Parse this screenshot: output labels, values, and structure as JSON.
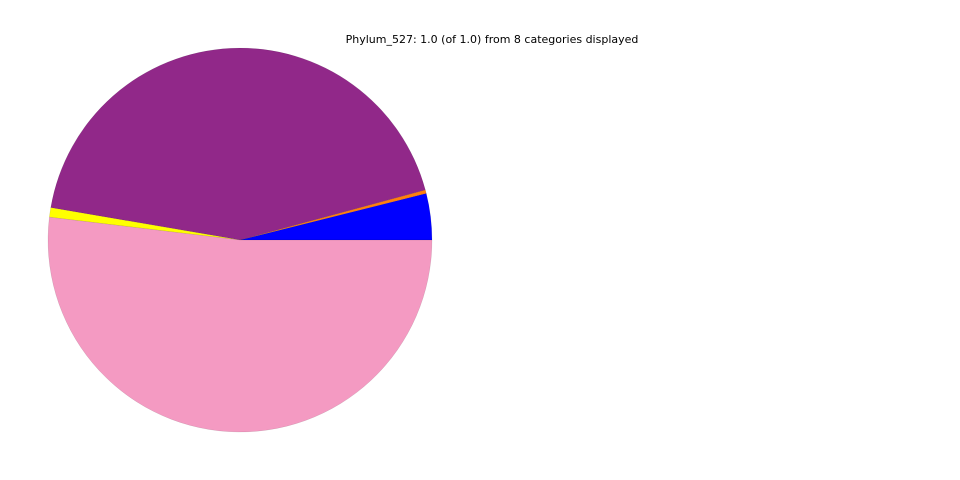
{
  "chart_data": {
    "type": "pie",
    "title": "Phylum_527: 1.0 (of 1.0) from 8 categories displayed",
    "start_angle": 0,
    "direction": "counterclockwise",
    "slices": [
      {
        "value": 0.039,
        "color": "#0000ff"
      },
      {
        "value": 0.003,
        "color": "#ff7f0e"
      },
      {
        "value": 0.431,
        "color": "#912889"
      },
      {
        "value": 0.008,
        "color": "#ffff00"
      },
      {
        "value": 0.519,
        "color": "#f49ac2"
      }
    ]
  }
}
